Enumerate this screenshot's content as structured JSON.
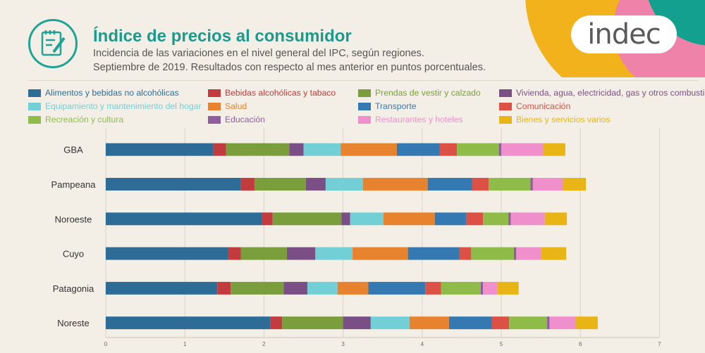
{
  "header": {
    "title": "Índice de precios al consumidor",
    "subtitle_line1": "Incidencia de las variaciones en el nivel general del IPC, según regiones.",
    "subtitle_line2": "Septiembre de 2019. Resultados con respecto al mes anterior en puntos porcentuales.",
    "logo_text": "indec",
    "icon": "checklist-pencil-icon"
  },
  "colors": {
    "accent_teal": "#1b9a8d",
    "deco_yellow": "#f2b21b",
    "deco_teal": "#14a08f",
    "deco_pink": "#ee82a8"
  },
  "chart_data": {
    "type": "bar",
    "orientation": "horizontal",
    "stacked": true,
    "categories": [
      "GBA",
      "Pampeana",
      "Noroeste",
      "Cuyo",
      "Patagonia",
      "Noreste"
    ],
    "xlim": [
      0,
      7
    ],
    "xticks": [
      "0",
      "1",
      "2",
      "3",
      "4",
      "5",
      "6",
      "7"
    ],
    "grid": true,
    "legend_position": "top",
    "series": [
      {
        "name": "Alimentos y bebidas no alcohólicas",
        "color": "#2d6c97",
        "values": [
          1.36,
          1.71,
          1.97,
          1.55,
          1.41,
          2.08
        ]
      },
      {
        "name": "Bebidas alcohólicas y tabaco",
        "color": "#c23b3e",
        "values": [
          0.16,
          0.17,
          0.14,
          0.16,
          0.17,
          0.15
        ]
      },
      {
        "name": "Prendas de vestir y calzado",
        "color": "#7a9e3c",
        "values": [
          0.8,
          0.65,
          0.87,
          0.58,
          0.67,
          0.77
        ]
      },
      {
        "name": "Vivienda, agua, electricidad, gas y otros combustibles",
        "color": "#7a4f85",
        "values": [
          0.18,
          0.25,
          0.11,
          0.36,
          0.3,
          0.35
        ]
      },
      {
        "name": "Equipamiento y mantenimiento del hogar",
        "color": "#72cfd6",
        "values": [
          0.47,
          0.47,
          0.42,
          0.47,
          0.38,
          0.49
        ]
      },
      {
        "name": "Salud",
        "color": "#e7832e",
        "values": [
          0.71,
          0.82,
          0.65,
          0.7,
          0.39,
          0.5
        ]
      },
      {
        "name": "Transporte",
        "color": "#3579b3",
        "values": [
          0.54,
          0.56,
          0.4,
          0.65,
          0.72,
          0.54
        ]
      },
      {
        "name": "Comunicación",
        "color": "#dd5045",
        "values": [
          0.22,
          0.21,
          0.21,
          0.15,
          0.2,
          0.22
        ]
      },
      {
        "name": "Recreación y cultura",
        "color": "#8fbb48",
        "values": [
          0.53,
          0.53,
          0.32,
          0.54,
          0.5,
          0.48
        ]
      },
      {
        "name": "Educación",
        "color": "#8e5f9c",
        "values": [
          0.03,
          0.03,
          0.03,
          0.03,
          0.03,
          0.03
        ]
      },
      {
        "name": "Restaurantes y hoteles",
        "color": "#ef90cc",
        "values": [
          0.53,
          0.38,
          0.43,
          0.31,
          0.18,
          0.33
        ]
      },
      {
        "name": "Bienes y servicios varios",
        "color": "#e9b516",
        "values": [
          0.28,
          0.29,
          0.28,
          0.32,
          0.27,
          0.28
        ]
      }
    ]
  }
}
